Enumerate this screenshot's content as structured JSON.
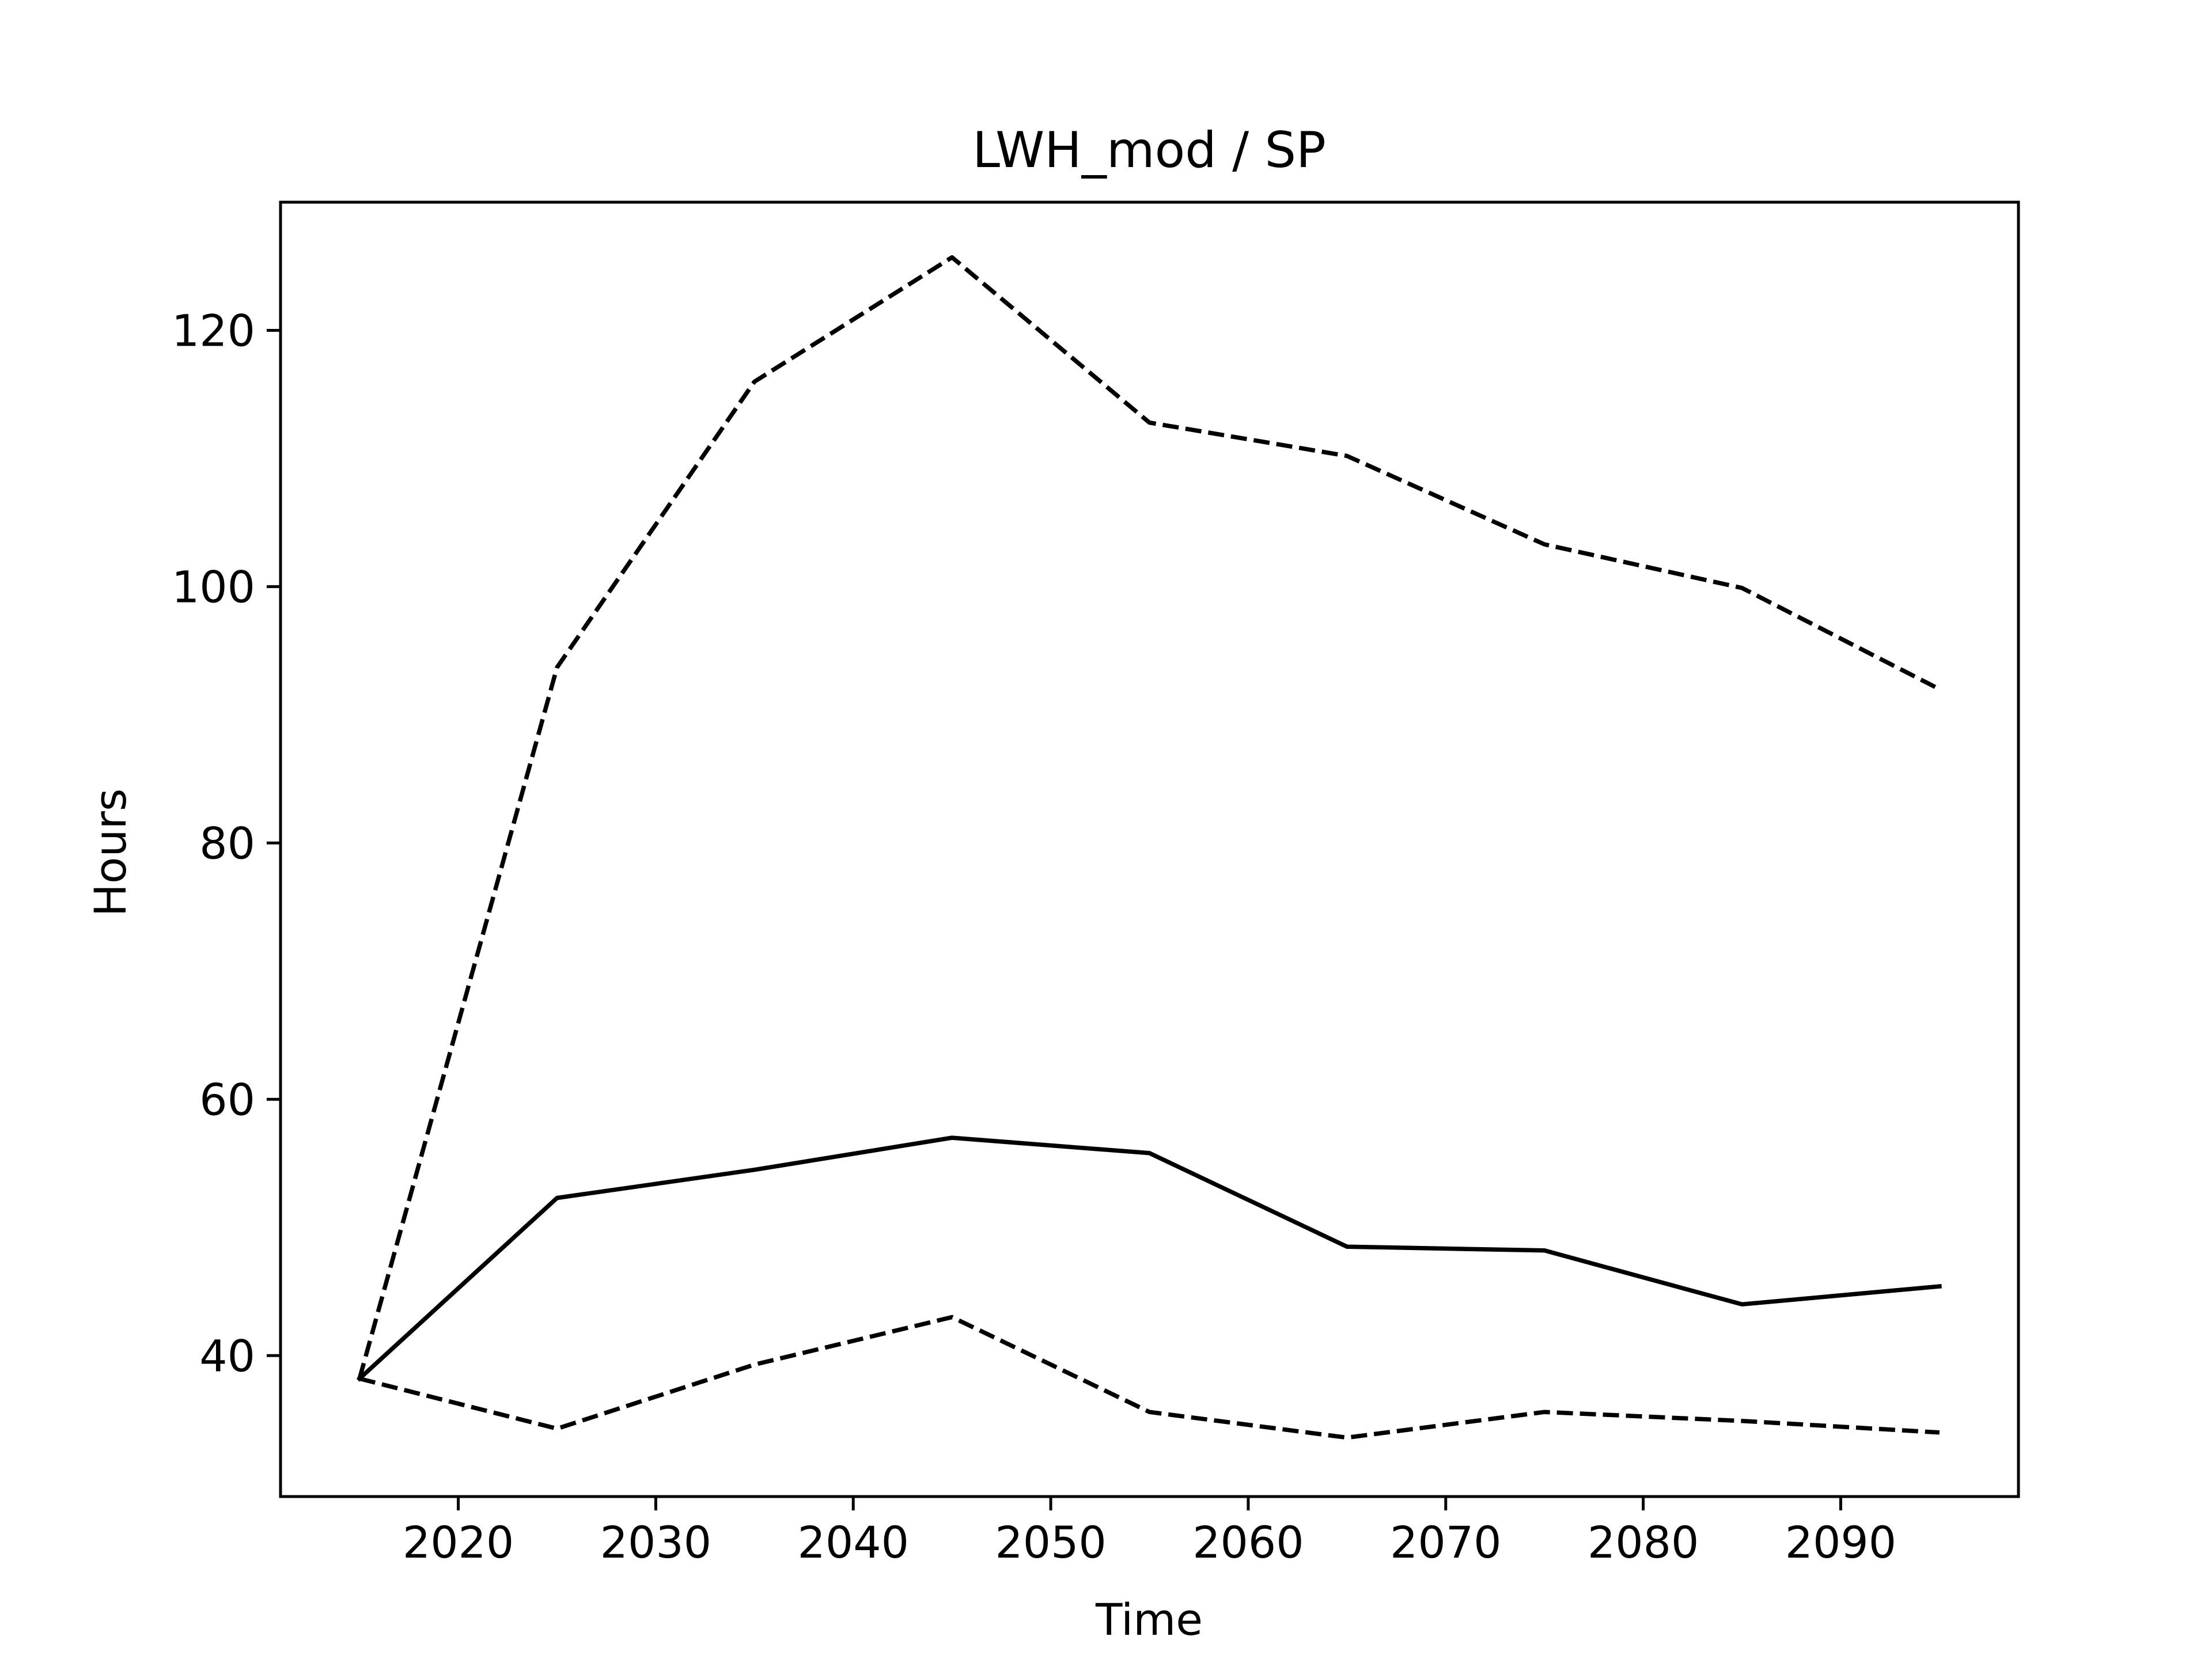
{
  "chart_data": {
    "type": "line",
    "title": "LWH_mod / SP",
    "xlabel": "Time",
    "ylabel": "Hours",
    "xlim": [
      2011,
      2099
    ],
    "ylim": [
      29,
      130
    ],
    "xticks": [
      2020,
      2030,
      2040,
      2050,
      2060,
      2070,
      2080,
      2090
    ],
    "yticks": [
      40,
      60,
      80,
      100,
      120
    ],
    "grid": false,
    "legend": "none",
    "x": [
      2015,
      2025,
      2035,
      2045,
      2055,
      2065,
      2075,
      2085,
      2095
    ],
    "series": [
      {
        "style": "solid",
        "color": "#000000",
        "values": [
          38.2,
          52.3,
          54.5,
          57.0,
          55.8,
          48.5,
          48.2,
          44.0,
          45.4
        ]
      },
      {
        "style": "dashed",
        "color": "#000000",
        "values": [
          38.2,
          93.7,
          116.0,
          125.7,
          112.8,
          110.2,
          103.3,
          99.9,
          92.0
        ]
      },
      {
        "style": "dashed",
        "color": "#000000",
        "values": [
          38.2,
          34.3,
          39.3,
          43.0,
          35.6,
          33.6,
          35.6,
          34.9,
          34.0
        ]
      }
    ]
  }
}
